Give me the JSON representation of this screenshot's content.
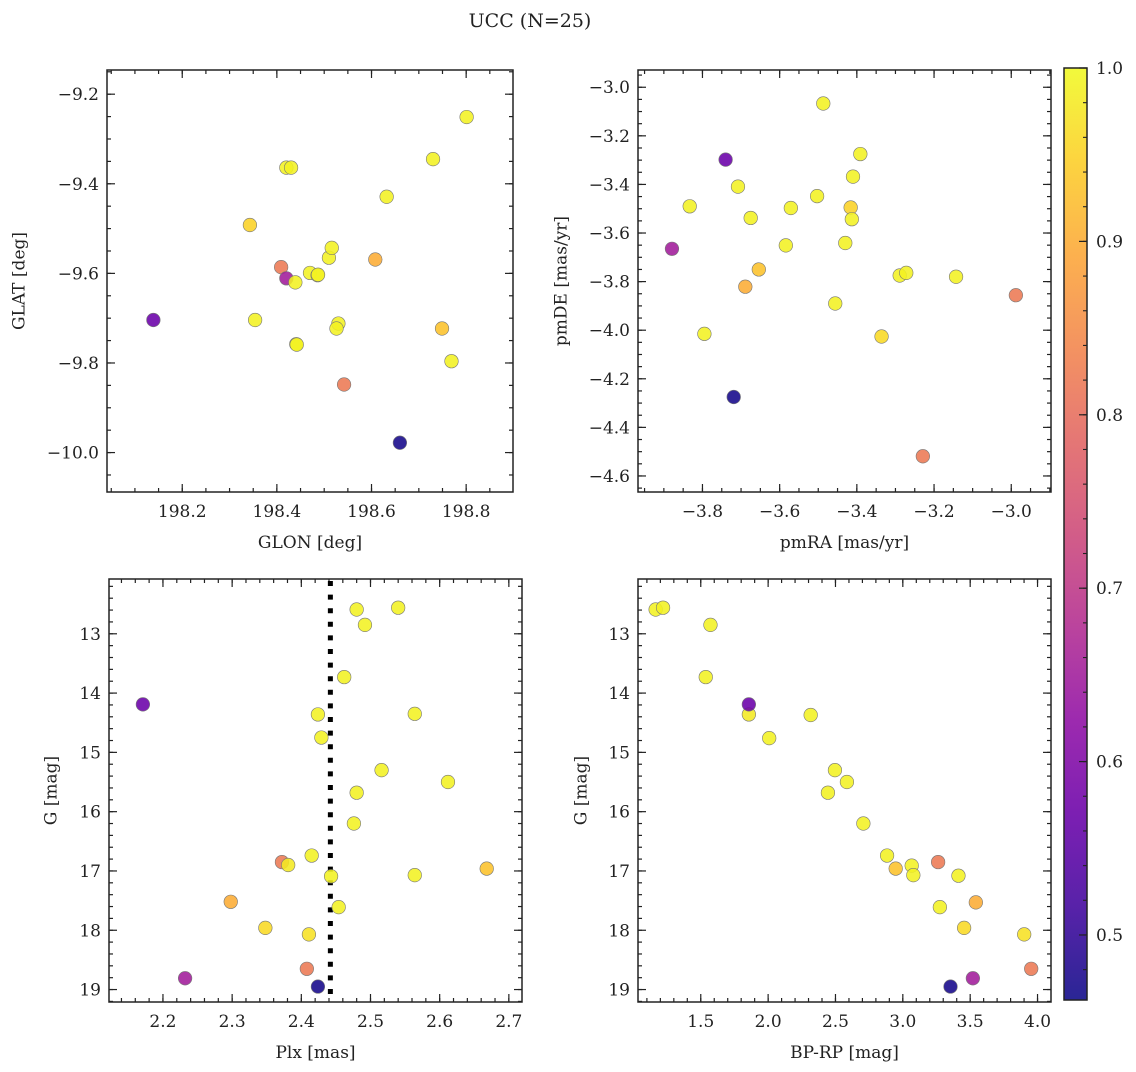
{
  "title": "UCC (N=25)",
  "colors": {
    "edge": "#777777",
    "frame": "#222222",
    "membership_line": "#000000"
  },
  "chart_data": [
    {
      "type": "scatter",
      "id": "glon-glat",
      "xlabel": "GLON [deg]",
      "ylabel": "GLAT [deg]",
      "xlim": [
        198.041,
        198.899
      ],
      "ylim": [
        -10.088,
        -9.146
      ],
      "invert_y": false,
      "xticks": [
        198.2,
        198.4,
        198.6,
        198.8
      ],
      "xminor": 0.05,
      "xdec": 1,
      "yticks": [
        -10.0,
        -9.8,
        -9.6,
        -9.4,
        -9.2
      ],
      "yminor": 0.05,
      "ydec": 1,
      "points": [
        [
          198.139,
          -9.704,
          0.57
        ],
        [
          198.343,
          -9.492,
          0.95
        ],
        [
          198.354,
          -9.704,
          0.99
        ],
        [
          198.42,
          -9.364,
          0.99
        ],
        [
          198.43,
          -9.364,
          0.99
        ],
        [
          198.409,
          -9.586,
          0.82
        ],
        [
          198.42,
          -9.611,
          0.65
        ],
        [
          198.439,
          -9.62,
          0.99
        ],
        [
          198.441,
          -9.758,
          0.99
        ],
        [
          198.442,
          -9.759,
          0.99
        ],
        [
          198.47,
          -9.599,
          0.99
        ],
        [
          198.486,
          -9.604,
          0.99
        ],
        [
          198.51,
          -9.565,
          0.99
        ],
        [
          198.516,
          -9.543,
          0.99
        ],
        [
          198.53,
          -9.712,
          0.99
        ],
        [
          198.526,
          -9.723,
          0.99
        ],
        [
          198.542,
          -9.848,
          0.82
        ],
        [
          198.608,
          -9.569,
          0.9
        ],
        [
          198.632,
          -9.429,
          0.99
        ],
        [
          198.66,
          -9.978,
          0.47
        ],
        [
          198.73,
          -9.345,
          0.99
        ],
        [
          198.749,
          -9.723,
          0.93
        ],
        [
          198.769,
          -9.796,
          0.99
        ],
        [
          198.801,
          -9.251,
          0.99
        ],
        [
          198.487,
          -9.603,
          0.99
        ]
      ]
    },
    {
      "type": "scatter",
      "id": "pmra-pmde",
      "xlabel": "pmRA [mas/yr]",
      "ylabel": "pmDE [mas/yr]",
      "xlim": [
        -3.967,
        -2.897
      ],
      "ylim": [
        -4.666,
        -2.929
      ],
      "invert_y": false,
      "xticks": [
        -3.8,
        -3.6,
        -3.4,
        -3.2,
        -3.0
      ],
      "xminor": 0.05,
      "xdec": 1,
      "yticks": [
        -4.6,
        -4.4,
        -4.2,
        -4.0,
        -3.8,
        -3.6,
        -3.4,
        -3.2,
        -3.0
      ],
      "yminor": 0.05,
      "ydec": 1,
      "points": [
        [
          -3.74,
          -3.298,
          0.57
        ],
        [
          -3.879,
          -3.665,
          0.65
        ],
        [
          -3.833,
          -3.49,
          0.99
        ],
        [
          -3.708,
          -3.409,
          0.99
        ],
        [
          -3.675,
          -3.538,
          0.99
        ],
        [
          -3.795,
          -4.015,
          0.99
        ],
        [
          -3.719,
          -4.275,
          0.47
        ],
        [
          -3.689,
          -3.821,
          0.9
        ],
        [
          -3.654,
          -3.75,
          0.93
        ],
        [
          -3.571,
          -3.497,
          0.99
        ],
        [
          -3.584,
          -3.651,
          0.99
        ],
        [
          -3.487,
          -3.067,
          0.99
        ],
        [
          -3.503,
          -3.448,
          0.99
        ],
        [
          -3.456,
          -3.89,
          0.99
        ],
        [
          -3.416,
          -3.495,
          0.95
        ],
        [
          -3.413,
          -3.543,
          0.99
        ],
        [
          -3.41,
          -3.368,
          0.99
        ],
        [
          -3.43,
          -3.641,
          0.99
        ],
        [
          -3.391,
          -3.275,
          0.99
        ],
        [
          -3.336,
          -4.026,
          0.96
        ],
        [
          -3.289,
          -3.775,
          0.99
        ],
        [
          -3.272,
          -3.764,
          0.99
        ],
        [
          -3.229,
          -4.519,
          0.82
        ],
        [
          -3.143,
          -3.78,
          0.99
        ],
        [
          -2.988,
          -3.856,
          0.82
        ]
      ]
    },
    {
      "type": "scatter",
      "id": "plx-g",
      "xlabel": "Plx [mas]",
      "ylabel": "G [mag]",
      "xlim": [
        2.122,
        2.719
      ],
      "ylim": [
        12.076,
        19.21
      ],
      "invert_y": true,
      "xticks": [
        2.2,
        2.3,
        2.4,
        2.5,
        2.6,
        2.7
      ],
      "xminor": 0.02,
      "xdec": 1,
      "yticks": [
        13,
        14,
        15,
        16,
        17,
        18,
        19
      ],
      "yminor": 0.2,
      "ydec": 0,
      "vline": 2.442,
      "points": [
        [
          2.171,
          14.19,
          0.57
        ],
        [
          2.424,
          14.36,
          0.99
        ],
        [
          2.429,
          14.75,
          0.99
        ],
        [
          2.462,
          13.73,
          0.99
        ],
        [
          2.48,
          12.59,
          0.99
        ],
        [
          2.54,
          12.56,
          0.99
        ],
        [
          2.492,
          12.85,
          0.99
        ],
        [
          2.564,
          14.35,
          0.99
        ],
        [
          2.516,
          15.3,
          0.99
        ],
        [
          2.612,
          15.5,
          0.99
        ],
        [
          2.48,
          15.68,
          0.99
        ],
        [
          2.476,
          16.2,
          0.99
        ],
        [
          2.415,
          16.74,
          0.99
        ],
        [
          2.372,
          16.85,
          0.82
        ],
        [
          2.381,
          16.9,
          0.98
        ],
        [
          2.443,
          17.09,
          0.99
        ],
        [
          2.564,
          17.07,
          0.99
        ],
        [
          2.668,
          16.96,
          0.93
        ],
        [
          2.298,
          17.52,
          0.9
        ],
        [
          2.454,
          17.61,
          0.99
        ],
        [
          2.348,
          17.96,
          0.96
        ],
        [
          2.411,
          18.07,
          0.97
        ],
        [
          2.408,
          18.65,
          0.82
        ],
        [
          2.232,
          18.81,
          0.65
        ],
        [
          2.424,
          18.95,
          0.47
        ]
      ]
    },
    {
      "type": "scatter",
      "id": "bprp-g",
      "xlabel": "BP-RP [mag]",
      "ylabel": "G [mag]",
      "xlim": [
        1.034,
        4.1
      ],
      "ylim": [
        12.076,
        19.21
      ],
      "invert_y": true,
      "xticks": [
        1.5,
        2.0,
        2.5,
        3.0,
        3.5,
        4.0
      ],
      "xminor": 0.1,
      "xdec": 1,
      "yticks": [
        13,
        14,
        15,
        16,
        17,
        18,
        19
      ],
      "yminor": 0.2,
      "ydec": 0,
      "points": [
        [
          1.165,
          12.59,
          0.99
        ],
        [
          1.22,
          12.56,
          0.99
        ],
        [
          1.572,
          12.85,
          0.99
        ],
        [
          1.537,
          13.73,
          0.99
        ],
        [
          1.857,
          14.36,
          0.98
        ],
        [
          1.857,
          14.19,
          0.57
        ],
        [
          2.316,
          14.37,
          0.99
        ],
        [
          2.008,
          14.76,
          0.99
        ],
        [
          2.496,
          15.3,
          0.99
        ],
        [
          2.585,
          15.5,
          0.99
        ],
        [
          2.444,
          15.68,
          0.99
        ],
        [
          2.707,
          16.2,
          0.99
        ],
        [
          2.883,
          16.74,
          0.99
        ],
        [
          2.947,
          16.96,
          0.93
        ],
        [
          3.066,
          16.91,
          0.99
        ],
        [
          3.078,
          17.07,
          0.99
        ],
        [
          3.262,
          16.85,
          0.82
        ],
        [
          3.413,
          17.08,
          0.99
        ],
        [
          3.275,
          17.61,
          0.99
        ],
        [
          3.542,
          17.53,
          0.9
        ],
        [
          3.455,
          17.96,
          0.96
        ],
        [
          3.901,
          18.07,
          0.97
        ],
        [
          3.953,
          18.65,
          0.82
        ],
        [
          3.52,
          18.81,
          0.65
        ],
        [
          3.354,
          18.95,
          0.47
        ]
      ]
    }
  ],
  "colorbar": {
    "colormap": "plasma",
    "range": [
      0.4625,
      1.0
    ],
    "ticks": [
      0.5,
      0.6,
      0.7,
      0.8,
      0.9,
      1.0
    ],
    "minor": 0.02
  }
}
